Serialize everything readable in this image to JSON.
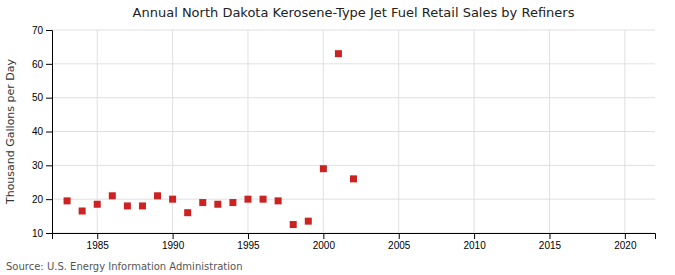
{
  "chart_data": {
    "type": "scatter",
    "title": "Annual North Dakota Kerosene-Type Jet Fuel Retail Sales by Refiners",
    "ylabel": "Thousand Gallons per Day",
    "source": "Source: U.S. Energy Information Administration",
    "x": [
      1983,
      1984,
      1985,
      1986,
      1987,
      1988,
      1989,
      1990,
      1991,
      1992,
      1993,
      1994,
      1995,
      1996,
      1997,
      1998,
      1999,
      2000,
      2001,
      2002
    ],
    "values": [
      19.5,
      16.5,
      18.5,
      21.0,
      18.0,
      18.0,
      21.0,
      20.0,
      16.0,
      19.0,
      18.5,
      19.0,
      20.0,
      20.0,
      19.5,
      12.5,
      13.5,
      29.0,
      63.0,
      26.0
    ],
    "color": "#cc2222",
    "marker": "square",
    "xlim": [
      1982,
      2022
    ],
    "xticks": [
      1985,
      1990,
      1995,
      2000,
      2005,
      2010,
      2015,
      2020
    ],
    "ylim": [
      10,
      70
    ],
    "yticks": [
      10,
      20,
      30,
      40,
      50,
      60,
      70
    ],
    "grid": true
  }
}
